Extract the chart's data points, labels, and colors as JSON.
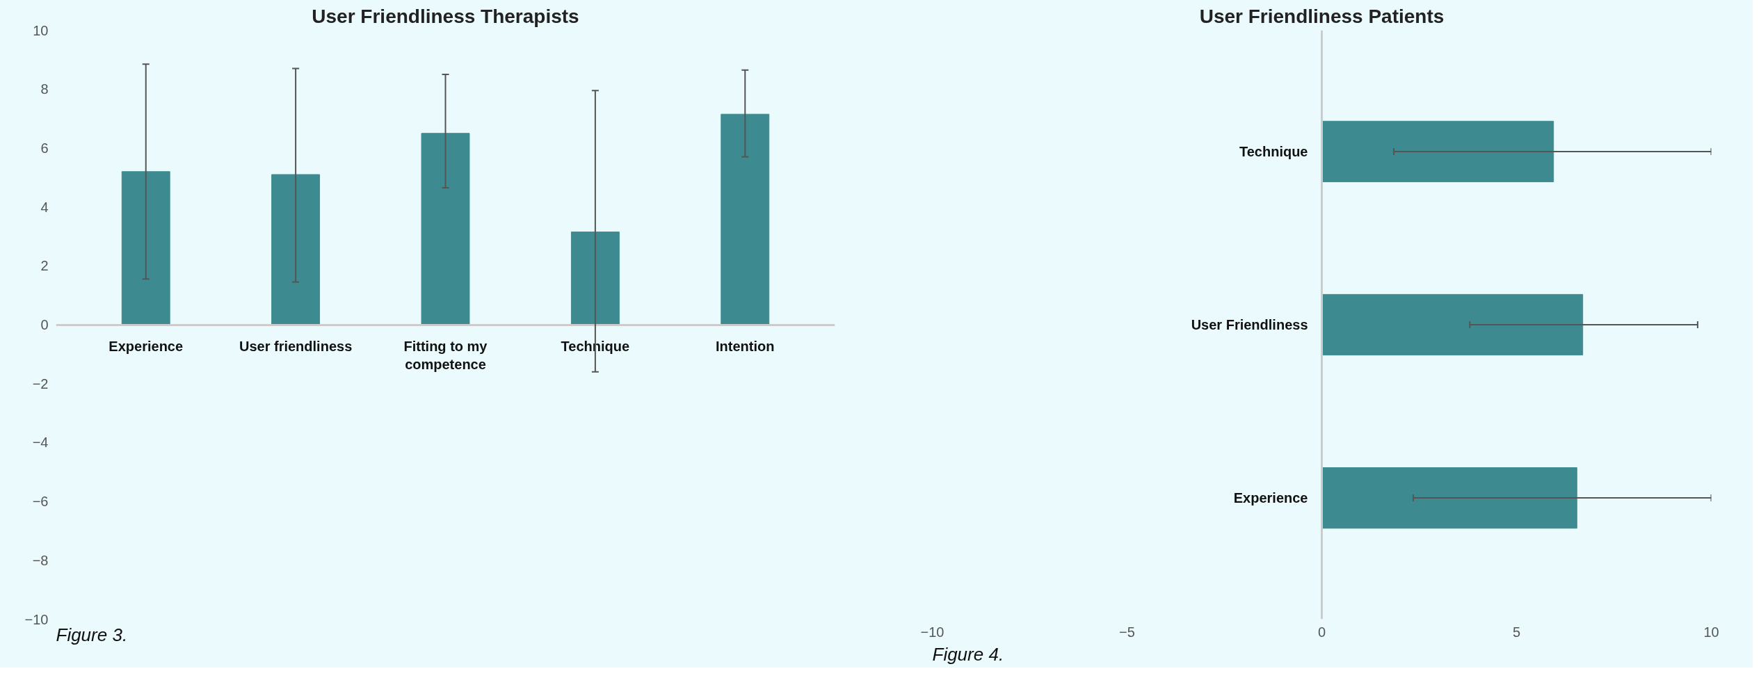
{
  "chart_data": [
    {
      "type": "bar",
      "title": "User Friendliness Therapists",
      "categories": [
        "Experience",
        "User friendliness",
        "Fitting to my competence",
        "Technique",
        "Intention"
      ],
      "values": [
        5.2,
        5.1,
        6.5,
        3.15,
        7.15
      ],
      "color": "#3d8b91",
      "errors": [
        [
          1.55,
          8.85
        ],
        [
          1.45,
          8.7
        ],
        [
          4.65,
          8.5
        ],
        [
          -1.6,
          7.95
        ],
        [
          5.7,
          8.65
        ]
      ],
      "ylim": [
        -10,
        10
      ],
      "yticks": [
        -10,
        -8,
        -6,
        -4,
        -2,
        0,
        2,
        4,
        6,
        8,
        10
      ],
      "grid": false,
      "annotations": [
        "Figure 3."
      ]
    },
    {
      "type": "bar",
      "orientation": "horizontal",
      "title": "User Friendliness Patients",
      "categories": [
        "Technique",
        "User Friendliness",
        "Experience"
      ],
      "values": [
        5.95,
        6.7,
        6.55
      ],
      "color": "#3d8b91",
      "errors": [
        [
          1.85,
          10
        ],
        [
          3.8,
          9.65
        ],
        [
          2.35,
          10
        ]
      ],
      "xlim": [
        -10,
        10
      ],
      "xticks": [
        -10,
        -5,
        0,
        5,
        10
      ],
      "grid": false,
      "annotations": [
        "Figure 4."
      ]
    }
  ]
}
